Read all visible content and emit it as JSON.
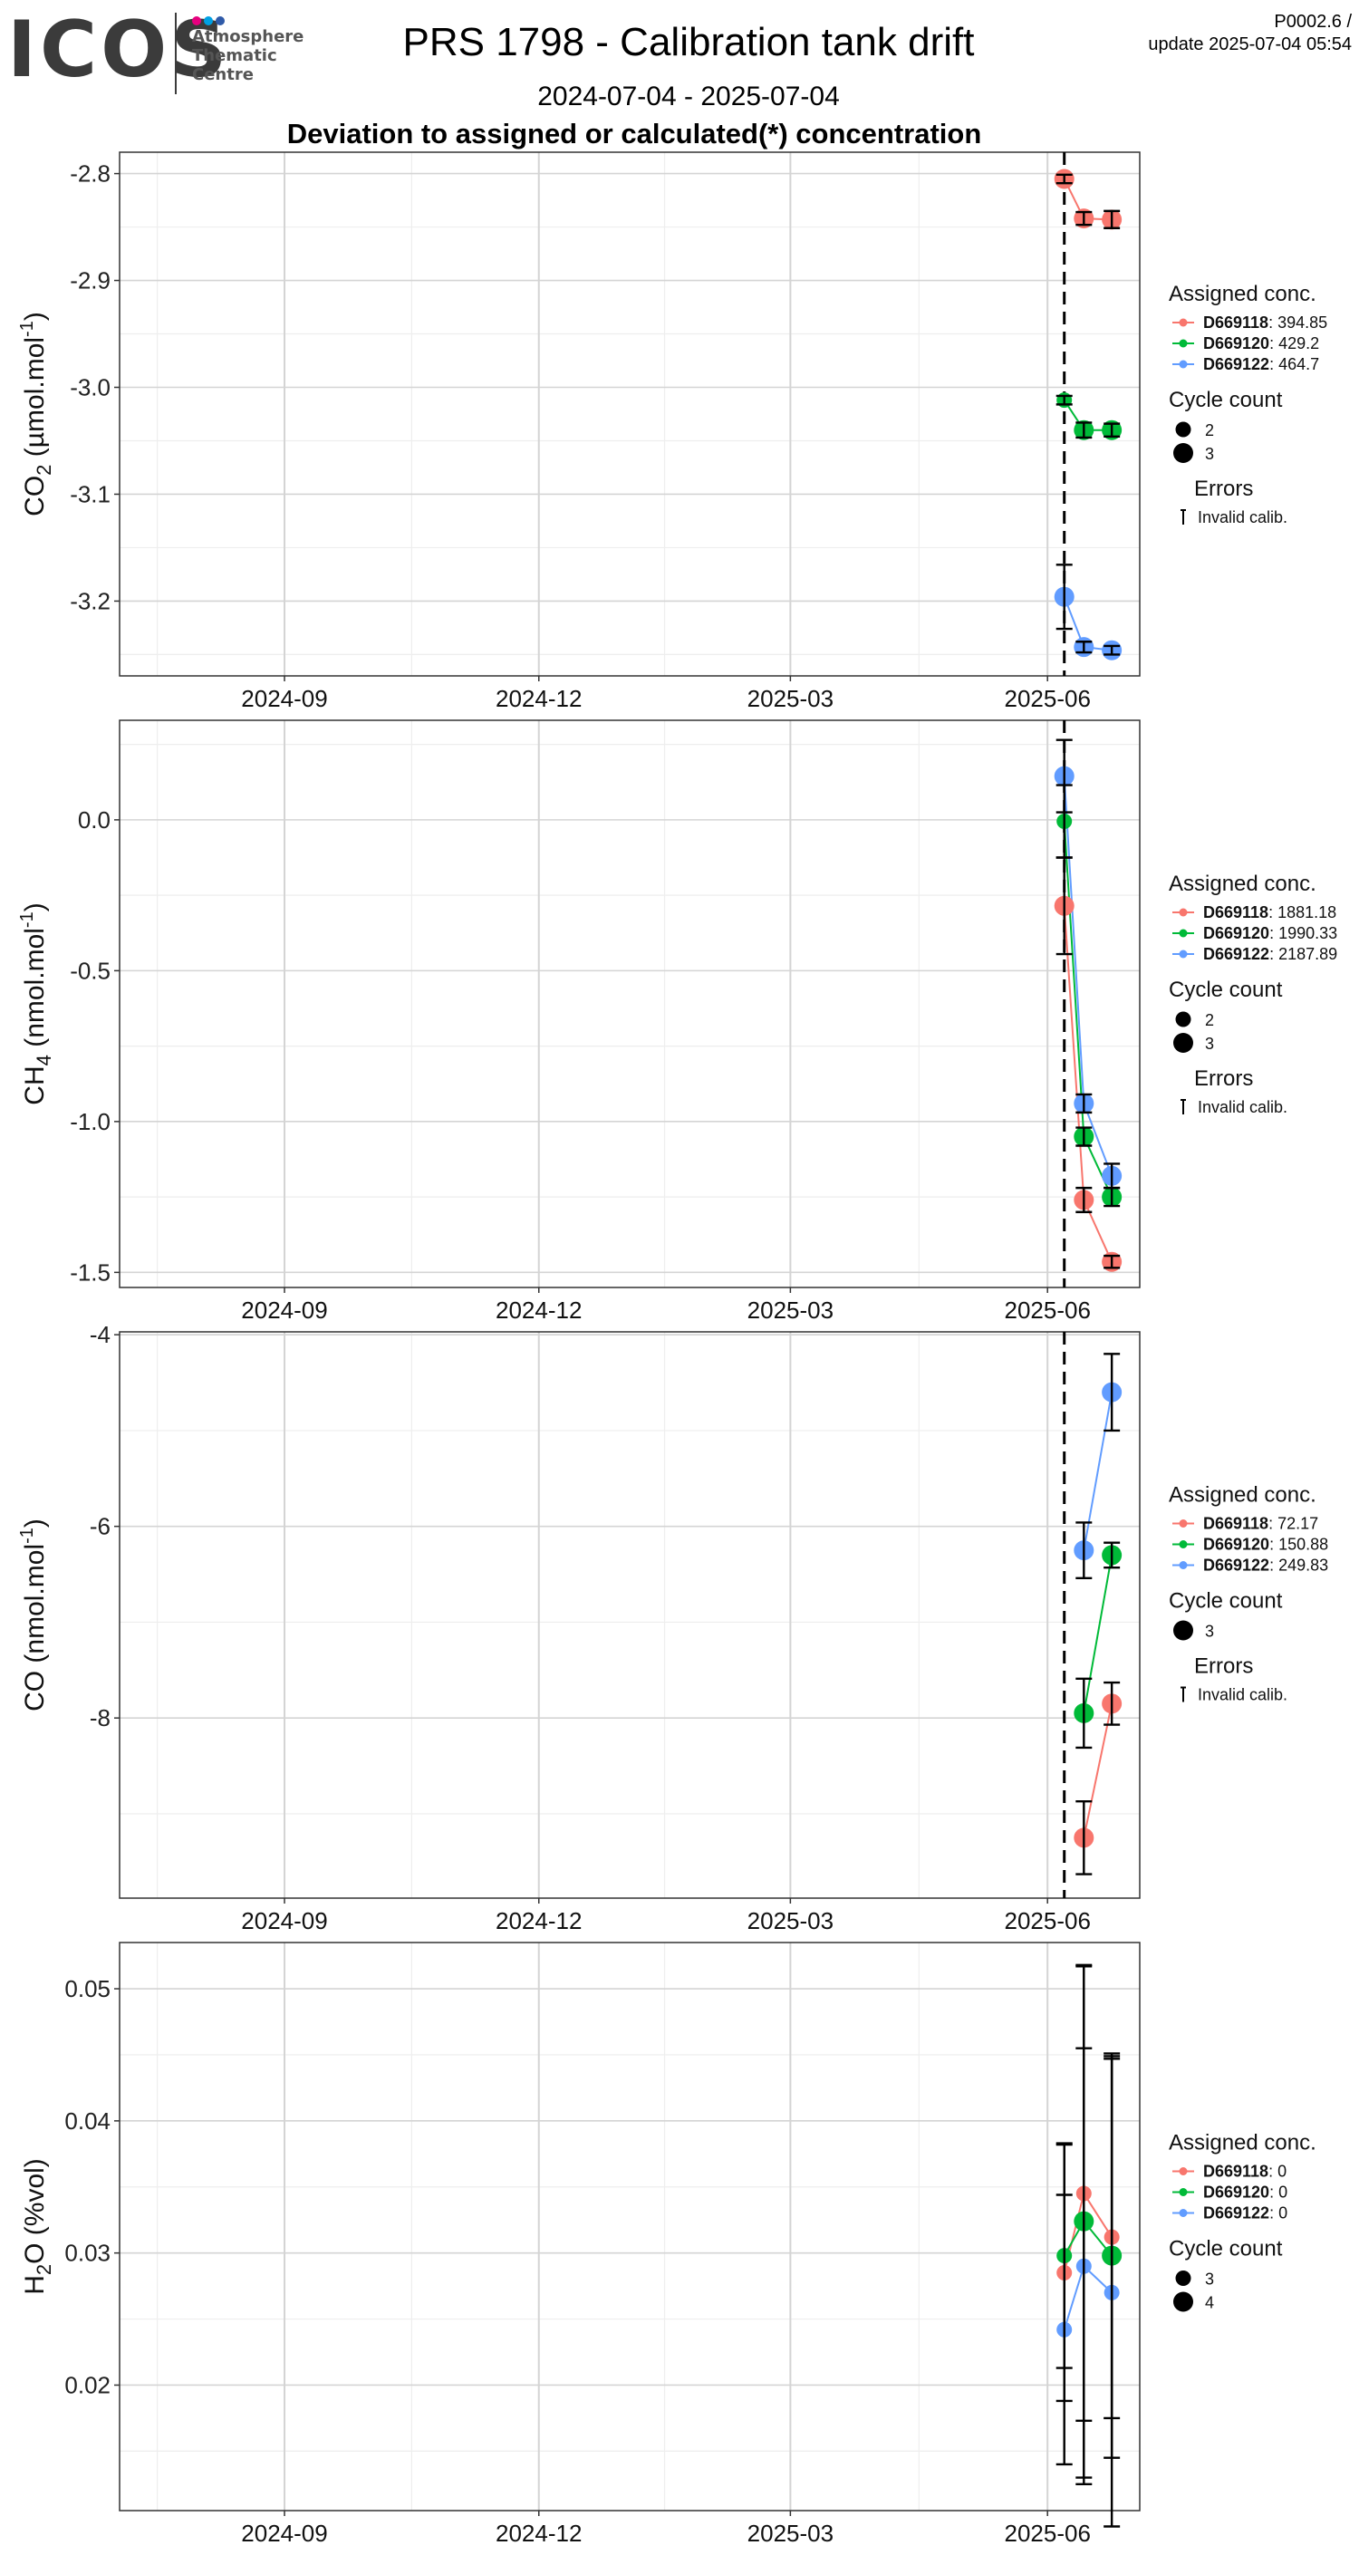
{
  "header": {
    "logo_word": "ICOS",
    "logo_lines": [
      "Atmosphere",
      "Thematic",
      "Centre"
    ],
    "logo_colors": [
      "#e6007e",
      "#00a0e3",
      "#2f5aa8"
    ],
    "title": "PRS 1798 - Calibration tank drift",
    "date_range": "2024-07-04 - 2025-07-04",
    "subtitle": "Deviation to assigned or calculated(*) concentration",
    "version": "P0002.6 /",
    "update": "update  2025-07-04 05:54"
  },
  "colors": {
    "D669118": "#F8766D",
    "D669120": "#00BA38",
    "D669122": "#619CFF",
    "error_bar": "#000000",
    "grid_major": "#d4d4d4",
    "grid_minor": "#eeeeee",
    "vline": "#000000"
  },
  "vline_date": "2025-06-07",
  "chart_data": [
    {
      "type": "scatter",
      "gas": "CO2",
      "ylabel_main": "CO",
      "ylabel_sub": "2",
      "ylabel_unit": " (µmol.mol",
      "ylabel_sup": "-1",
      "ylabel_close": ")",
      "xlim": [
        "2024-07-04",
        "2025-07-04"
      ],
      "x_ticks": [
        "2024-09",
        "2024-12",
        "2025-03",
        "2025-06"
      ],
      "ylim": [
        -3.27,
        -2.78
      ],
      "y_ticks": [
        -3.2,
        -3.1,
        -3.0,
        -2.9,
        -2.8
      ],
      "y_tick_labels": [
        "-3.2",
        "-3.1",
        "-3.0",
        "-2.9",
        "-2.8"
      ],
      "grid": true,
      "legend_title": "Assigned conc.",
      "series": [
        {
          "name": "D669118",
          "assigned": "394.85",
          "points": [
            {
              "x": "2025-06-07",
              "y": -2.805,
              "err": 0.004,
              "cycles": 3
            },
            {
              "x": "2025-06-14",
              "y": -2.842,
              "err": 0.006,
              "cycles": 3
            },
            {
              "x": "2025-06-24",
              "y": -2.843,
              "err": 0.008,
              "cycles": 3
            }
          ]
        },
        {
          "name": "D669120",
          "assigned": "429.2",
          "points": [
            {
              "x": "2025-06-07",
              "y": -3.012,
              "err": 0.004,
              "cycles": 2
            },
            {
              "x": "2025-06-14",
              "y": -3.04,
              "err": 0.007,
              "cycles": 3
            },
            {
              "x": "2025-06-24",
              "y": -3.04,
              "err": 0.006,
              "cycles": 3
            }
          ]
        },
        {
          "name": "D669122",
          "assigned": "464.7",
          "points": [
            {
              "x": "2025-06-07",
              "y": -3.196,
              "err": 0.03,
              "cycles": 3
            },
            {
              "x": "2025-06-14",
              "y": -3.243,
              "err": 0.005,
              "cycles": 3
            },
            {
              "x": "2025-06-24",
              "y": -3.246,
              "err": 0.004,
              "cycles": 3
            }
          ]
        }
      ],
      "cycle_legend_title": "Cycle count",
      "cycle_levels": [
        "2",
        "3"
      ],
      "errors_title": "Errors",
      "errors_label": "Invalid calib."
    },
    {
      "type": "scatter",
      "gas": "CH4",
      "ylabel_main": "CH",
      "ylabel_sub": "4",
      "ylabel_unit": " (nmol.mol",
      "ylabel_sup": "-1",
      "ylabel_close": ")",
      "xlim": [
        "2024-07-04",
        "2025-07-04"
      ],
      "x_ticks": [
        "2024-09",
        "2024-12",
        "2025-03",
        "2025-06"
      ],
      "ylim": [
        -1.55,
        0.33
      ],
      "y_ticks": [
        -1.5,
        -1.0,
        -0.5,
        0.0
      ],
      "y_tick_labels": [
        "-1.5",
        "-1.0",
        "-0.5",
        "0.0"
      ],
      "grid": true,
      "legend_title": "Assigned conc.",
      "series": [
        {
          "name": "D669118",
          "assigned": "1881.18",
          "points": [
            {
              "x": "2025-06-07",
              "y": -0.285,
              "err": 0.16,
              "cycles": 3
            },
            {
              "x": "2025-06-14",
              "y": -1.26,
              "err": 0.04,
              "cycles": 3
            },
            {
              "x": "2025-06-24",
              "y": -1.465,
              "err": 0.02,
              "cycles": 3
            }
          ]
        },
        {
          "name": "D669120",
          "assigned": "1990.33",
          "points": [
            {
              "x": "2025-06-07",
              "y": -0.005,
              "err": 0.12,
              "cycles": 2
            },
            {
              "x": "2025-06-14",
              "y": -1.05,
              "err": 0.03,
              "cycles": 3
            },
            {
              "x": "2025-06-24",
              "y": -1.25,
              "err": 0.03,
              "cycles": 3
            }
          ]
        },
        {
          "name": "D669122",
          "assigned": "2187.89",
          "points": [
            {
              "x": "2025-06-07",
              "y": 0.145,
              "err": 0.12,
              "cycles": 3
            },
            {
              "x": "2025-06-14",
              "y": -0.94,
              "err": 0.03,
              "cycles": 3
            },
            {
              "x": "2025-06-24",
              "y": -1.18,
              "err": 0.04,
              "cycles": 3
            }
          ]
        }
      ],
      "cycle_legend_title": "Cycle count",
      "cycle_levels": [
        "2",
        "3"
      ],
      "errors_title": "Errors",
      "errors_label": "Invalid calib."
    },
    {
      "type": "scatter",
      "gas": "CO",
      "ylabel_main": "CO",
      "ylabel_sub": "",
      "ylabel_unit": " (nmol.mol",
      "ylabel_sup": "-1",
      "ylabel_close": ")",
      "xlim": [
        "2024-07-04",
        "2025-07-04"
      ],
      "x_ticks": [
        "2024-09",
        "2024-12",
        "2025-03",
        "2025-06"
      ],
      "ylim": [
        -9.88,
        -3.97
      ],
      "y_ticks": [
        -8,
        -6,
        -4
      ],
      "y_tick_labels": [
        "-8",
        "-6",
        "-4"
      ],
      "grid": true,
      "legend_title": "Assigned conc.",
      "series": [
        {
          "name": "D669118",
          "assigned": "72.17",
          "points": [
            {
              "x": "2025-06-14",
              "y": -9.25,
              "err": 0.38,
              "cycles": 3
            },
            {
              "x": "2025-06-24",
              "y": -7.85,
              "err": 0.22,
              "cycles": 3
            }
          ]
        },
        {
          "name": "D669120",
          "assigned": "150.88",
          "points": [
            {
              "x": "2025-06-14",
              "y": -7.95,
              "err": 0.36,
              "cycles": 3
            },
            {
              "x": "2025-06-24",
              "y": -6.3,
              "err": 0.13,
              "cycles": 3
            }
          ]
        },
        {
          "name": "D669122",
          "assigned": "249.83",
          "points": [
            {
              "x": "2025-06-14",
              "y": -6.25,
              "err": 0.29,
              "cycles": 3
            },
            {
              "x": "2025-06-24",
              "y": -4.6,
              "err": 0.4,
              "cycles": 3
            }
          ]
        }
      ],
      "cycle_legend_title": "Cycle count",
      "cycle_levels": [
        "3"
      ],
      "errors_title": "Errors",
      "errors_label": "Invalid calib."
    },
    {
      "type": "scatter",
      "gas": "H2O",
      "ylabel_main": "H",
      "ylabel_sub": "2",
      "ylabel_unit": "O (%vol)",
      "ylabel_sup": "",
      "ylabel_close": "",
      "xlim": [
        "2024-07-04",
        "2025-07-04"
      ],
      "x_ticks": [
        "2024-09",
        "2024-12",
        "2025-03",
        "2025-06"
      ],
      "ylim": [
        0.0105,
        0.0535
      ],
      "y_ticks": [
        0.02,
        0.03,
        0.04,
        0.05
      ],
      "y_tick_labels": [
        "0.02",
        "0.03",
        "0.04",
        "0.05"
      ],
      "grid": true,
      "legend_title": "Assigned conc.",
      "series": [
        {
          "name": "D669118",
          "assigned": "0",
          "points": [
            {
              "x": "2025-06-07",
              "y": 0.0285,
              "err": 0.0097,
              "cycles": 3
            },
            {
              "x": "2025-06-14",
              "y": 0.0345,
              "err": 0.0172,
              "cycles": 3
            },
            {
              "x": "2025-06-24",
              "y": 0.0312,
              "err": 0.0137,
              "cycles": 3
            }
          ]
        },
        {
          "name": "D669120",
          "assigned": "0",
          "points": [
            {
              "x": "2025-06-07",
              "y": 0.0298,
              "err": 0.0085,
              "cycles": 3
            },
            {
              "x": "2025-06-14",
              "y": 0.0324,
              "err": 0.0194,
              "cycles": 4
            },
            {
              "x": "2025-06-24",
              "y": 0.0298,
              "err": 0.0153,
              "cycles": 4
            }
          ]
        },
        {
          "name": "D669122",
          "assigned": "0",
          "points": [
            {
              "x": "2025-06-07",
              "y": 0.0242,
              "err": 0.0102,
              "cycles": 3
            },
            {
              "x": "2025-06-14",
              "y": 0.029,
              "err": 0.0165,
              "cycles": 3
            },
            {
              "x": "2025-06-24",
              "y": 0.027,
              "err": 0.0177,
              "cycles": 3
            }
          ]
        }
      ],
      "cycle_legend_title": "Cycle count",
      "cycle_levels": [
        "3",
        "4"
      ],
      "errors_title": "",
      "errors_label": ""
    }
  ]
}
